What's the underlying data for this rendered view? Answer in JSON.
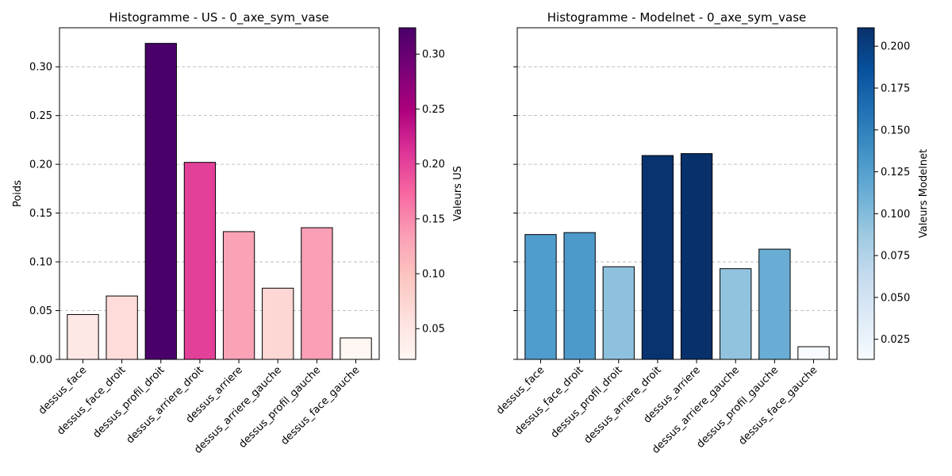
{
  "chart_data": [
    {
      "type": "bar",
      "title": "Histogramme - US - 0_axe_sym_vase",
      "ylabel": "Poids",
      "xlabel": "",
      "categories": [
        "dessus_face",
        "dessus_face_droit",
        "dessus_profil_droit",
        "dessus_arriere_droit",
        "dessus_arriere",
        "dessus_arriere_gauche",
        "dessus_profil_gauche",
        "dessus_face_gauche"
      ],
      "values": [
        0.046,
        0.065,
        0.324,
        0.202,
        0.131,
        0.073,
        0.135,
        0.022
      ],
      "ylim": [
        0,
        0.34
      ],
      "yticks": [
        "0.00",
        "0.05",
        "0.10",
        "0.15",
        "0.20",
        "0.25",
        "0.30"
      ],
      "grid": "horizontal dashed",
      "colormap": "RdPu",
      "colorbar": {
        "label": "Valeurs US",
        "range": [
          0.022,
          0.324
        ],
        "ticks": [
          "0.05",
          "0.10",
          "0.15",
          "0.20",
          "0.25",
          "0.30"
        ],
        "colors": [
          "#fff7f3",
          "#fde0dd",
          "#fcc5c0",
          "#fa9fb5",
          "#f768a1",
          "#dd3497",
          "#ae017e",
          "#7a0177",
          "#49006a"
        ]
      }
    },
    {
      "type": "bar",
      "title": "Histogramme - Modelnet - 0_axe_sym_vase",
      "ylabel": "",
      "xlabel": "",
      "categories": [
        "dessus_face",
        "dessus_face_droit",
        "dessus_profil_droit",
        "dessus_arriere_droit",
        "dessus_arriere",
        "dessus_arriere_gauche",
        "dessus_profil_gauche",
        "dessus_face_gauche"
      ],
      "values": [
        0.128,
        0.13,
        0.095,
        0.209,
        0.211,
        0.093,
        0.113,
        0.013
      ],
      "ylim": [
        0,
        0.34
      ],
      "grid": "horizontal dashed",
      "colormap": "Blues",
      "colorbar": {
        "label": "Valeurs Modelnet",
        "range": [
          0.013,
          0.211
        ],
        "ticks": [
          "0.025",
          "0.050",
          "0.075",
          "0.100",
          "0.125",
          "0.150",
          "0.175",
          "0.200"
        ],
        "colors": [
          "#f7fbff",
          "#deebf7",
          "#c6dbef",
          "#9ecae1",
          "#6baed6",
          "#4292c6",
          "#2171b5",
          "#08519c",
          "#08306b"
        ]
      }
    }
  ]
}
